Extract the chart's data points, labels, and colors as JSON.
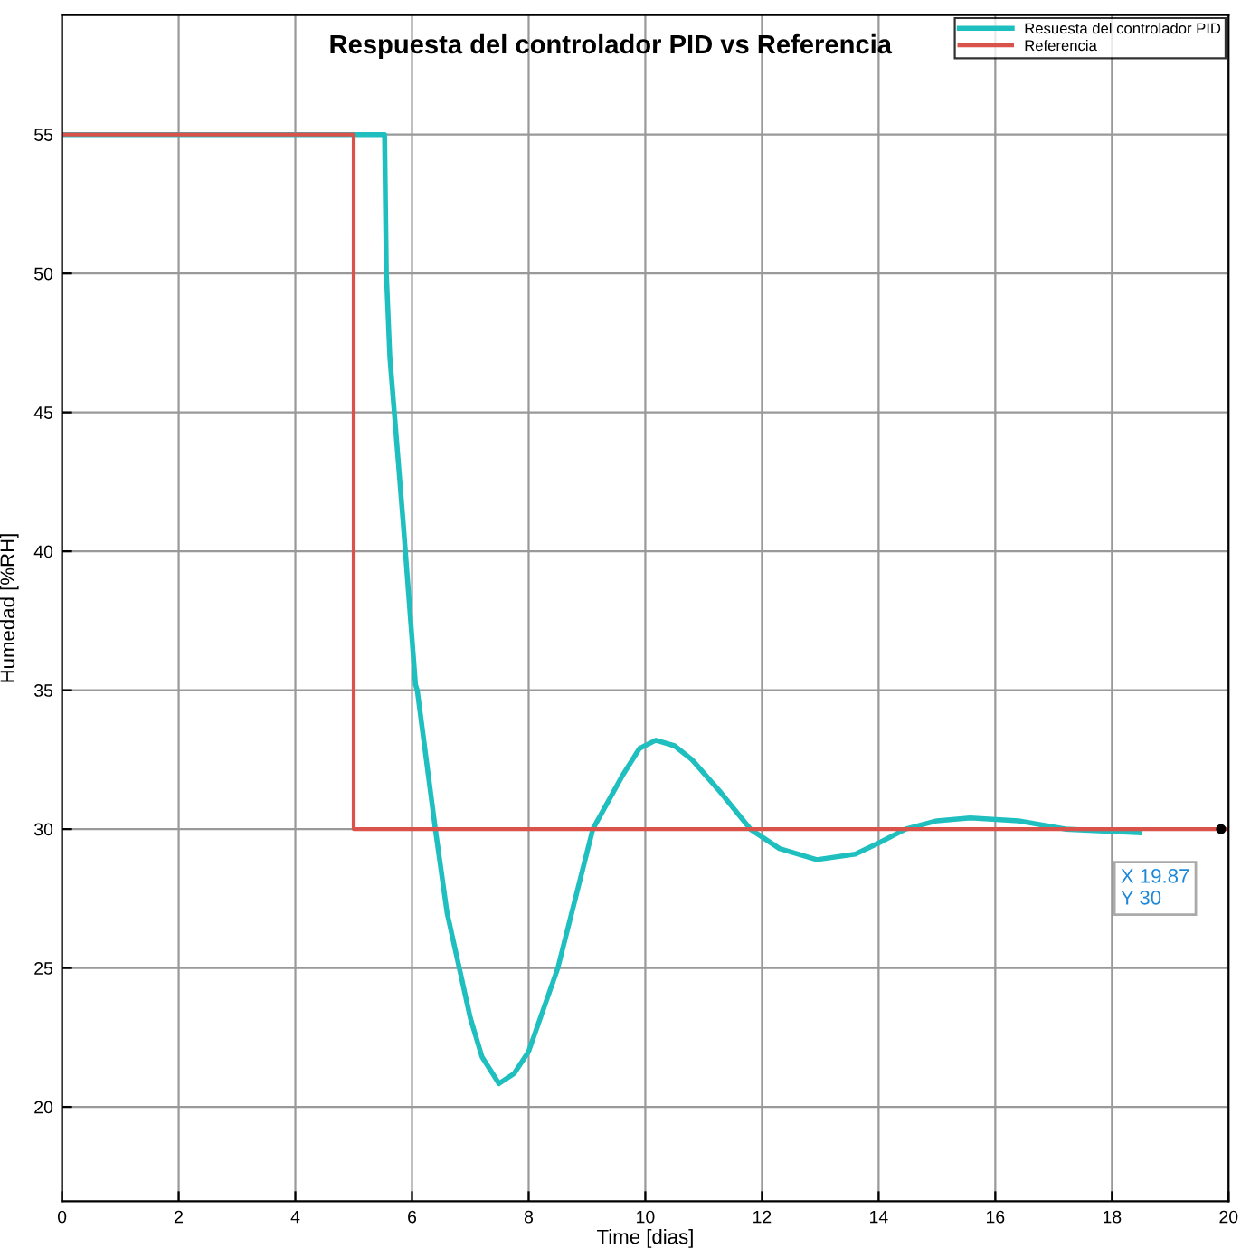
{
  "chart_data": {
    "type": "line",
    "title": "Respuesta del controlador PID vs Referencia",
    "xlabel": "Time [dias]",
    "ylabel": "Humedad [%RH]",
    "xlim": [
      0,
      20
    ],
    "xticks": [
      0,
      2,
      4,
      6,
      8,
      10,
      12,
      14,
      16,
      18,
      20
    ],
    "ylim": [
      16.6,
      59.3
    ],
    "yticks": [
      20,
      25,
      30,
      35,
      40,
      45,
      50,
      55
    ],
    "grid": true,
    "legend": "top right",
    "series": [
      {
        "name": "Resuesta del controlador PID",
        "color": "#1fbfc0",
        "x": [
          0,
          5.53,
          5.56,
          5.62,
          5.85,
          6.06,
          6.09,
          6.4,
          6.6,
          7.0,
          7.2,
          7.49,
          7.75,
          8.0,
          8.5,
          9.1,
          9.6,
          9.9,
          10.18,
          10.5,
          10.8,
          11.3,
          11.8,
          12.3,
          12.94,
          13.6,
          14.0,
          14.46,
          15.0,
          15.57,
          16.4,
          17.2,
          18.47
        ],
        "values": [
          55,
          55,
          50,
          47,
          41,
          35.2,
          35,
          30,
          27,
          23.2,
          21.8,
          20.84,
          21.2,
          22,
          25,
          30,
          31.9,
          32.9,
          33.2,
          33.0,
          32.5,
          31.3,
          30,
          29.3,
          28.9,
          29.1,
          29.5,
          30,
          30.3,
          30.4,
          30.3,
          30,
          29.87
        ]
      },
      {
        "name": "Referencia",
        "type": "step",
        "color": "#d9534a",
        "x": [
          0,
          5,
          20
        ],
        "values": [
          55,
          30,
          30
        ]
      }
    ],
    "annotations": [
      {
        "text": "X 19.87\nY 30",
        "x": 19.87,
        "y": 30
      }
    ]
  }
}
